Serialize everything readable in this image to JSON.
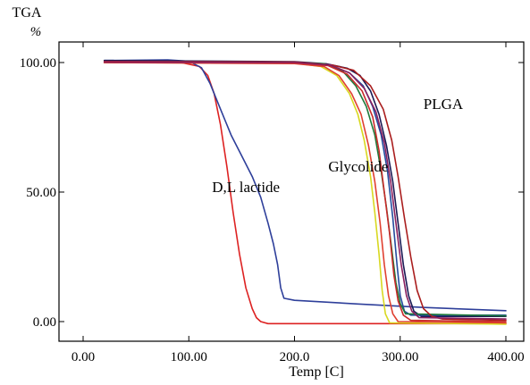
{
  "chart_data": {
    "type": "line",
    "y_unit_label": "TGA",
    "y_unit_symbol": "%",
    "xlabel": "Temp [C]",
    "xlim": [
      0,
      400
    ],
    "ylim": [
      -3,
      103
    ],
    "x_ticks": [
      {
        "value": 0,
        "label": "0.00"
      },
      {
        "value": 100,
        "label": "100.00"
      },
      {
        "value": 200,
        "label": "200.0"
      },
      {
        "value": 300,
        "label": "300.00"
      },
      {
        "value": 400,
        "label": "400.00"
      }
    ],
    "y_ticks": [
      {
        "value": 0,
        "label": "0.00"
      },
      {
        "value": 50,
        "label": "50.00"
      },
      {
        "value": 100,
        "label": "100.00"
      }
    ],
    "grid": false,
    "legend": "none",
    "annotations": [
      {
        "text": "PLGA",
        "x": 322,
        "y": 82
      },
      {
        "text": "Glycolide",
        "x": 232,
        "y": 58
      },
      {
        "text": "D,L lactide",
        "x": 122,
        "y": 50
      }
    ],
    "series": [
      {
        "color": "#dd2222",
        "points": [
          [
            20,
            100
          ],
          [
            90,
            100.2
          ],
          [
            110,
            98.5
          ],
          [
            118,
            95
          ],
          [
            124,
            88
          ],
          [
            130,
            76
          ],
          [
            136,
            60
          ],
          [
            142,
            42
          ],
          [
            148,
            26
          ],
          [
            154,
            13
          ],
          [
            160,
            5
          ],
          [
            164,
            1.5
          ],
          [
            168,
            0
          ],
          [
            175,
            -0.8
          ],
          [
            400,
            -0.8
          ]
        ]
      },
      {
        "color": "#2e3f9a",
        "points": [
          [
            20,
            100.8
          ],
          [
            80,
            101
          ],
          [
            100,
            100.5
          ],
          [
            112,
            98
          ],
          [
            120,
            92
          ],
          [
            130,
            82
          ],
          [
            140,
            72
          ],
          [
            150,
            64
          ],
          [
            160,
            56
          ],
          [
            168,
            48
          ],
          [
            175,
            38
          ],
          [
            180,
            30
          ],
          [
            184,
            22
          ],
          [
            187,
            13
          ],
          [
            190,
            9
          ],
          [
            200,
            8.2
          ],
          [
            260,
            6.8
          ],
          [
            320,
            5.5
          ],
          [
            400,
            4.2
          ]
        ]
      },
      {
        "color": "#1a1a55",
        "points": [
          [
            20,
            100.8
          ],
          [
            200,
            100.3
          ],
          [
            230,
            99.5
          ],
          [
            250,
            97.8
          ],
          [
            262,
            95
          ],
          [
            272,
            89
          ],
          [
            280,
            80
          ],
          [
            287,
            68
          ],
          [
            293,
            54
          ],
          [
            298,
            38
          ],
          [
            303,
            22
          ],
          [
            308,
            10
          ],
          [
            313,
            4
          ],
          [
            320,
            2
          ],
          [
            400,
            2
          ]
        ]
      },
      {
        "color": "#244c9e",
        "points": [
          [
            20,
            100.4
          ],
          [
            200,
            100.2
          ],
          [
            235,
            98.8
          ],
          [
            252,
            96
          ],
          [
            265,
            91
          ],
          [
            274,
            83
          ],
          [
            282,
            72
          ],
          [
            288,
            58
          ],
          [
            293,
            40
          ],
          [
            297,
            22
          ],
          [
            300,
            10
          ],
          [
            304,
            4
          ],
          [
            310,
            2.5
          ],
          [
            400,
            2.5
          ]
        ]
      },
      {
        "color": "#1f7a3a",
        "points": [
          [
            20,
            100.2
          ],
          [
            200,
            100
          ],
          [
            228,
            99.5
          ],
          [
            246,
            96.5
          ],
          [
            258,
            91
          ],
          [
            268,
            83
          ],
          [
            276,
            72
          ],
          [
            282,
            58
          ],
          [
            287,
            44
          ],
          [
            292,
            28
          ],
          [
            296,
            15
          ],
          [
            300,
            7
          ],
          [
            305,
            3
          ],
          [
            400,
            2.2
          ]
        ]
      },
      {
        "color": "#d8d820",
        "points": [
          [
            20,
            100
          ],
          [
            200,
            99.8
          ],
          [
            225,
            98.5
          ],
          [
            240,
            95
          ],
          [
            252,
            88
          ],
          [
            260,
            80
          ],
          [
            266,
            70
          ],
          [
            272,
            56
          ],
          [
            276,
            42
          ],
          [
            280,
            26
          ],
          [
            283,
            12
          ],
          [
            286,
            3
          ],
          [
            290,
            -0.5
          ],
          [
            400,
            -1
          ]
        ]
      },
      {
        "color": "#e04030",
        "points": [
          [
            20,
            100
          ],
          [
            200,
            99.6
          ],
          [
            228,
            98.5
          ],
          [
            242,
            95
          ],
          [
            254,
            88
          ],
          [
            263,
            80
          ],
          [
            270,
            68
          ],
          [
            276,
            54
          ],
          [
            281,
            38
          ],
          [
            285,
            22
          ],
          [
            289,
            10
          ],
          [
            293,
            3
          ],
          [
            298,
            0
          ],
          [
            400,
            -0.5
          ]
        ]
      },
      {
        "color": "#aa1e1e",
        "points": [
          [
            20,
            100.4
          ],
          [
            200,
            100.2
          ],
          [
            236,
            99
          ],
          [
            256,
            97
          ],
          [
            272,
            91
          ],
          [
            284,
            82
          ],
          [
            292,
            70
          ],
          [
            298,
            56
          ],
          [
            304,
            40
          ],
          [
            310,
            25
          ],
          [
            316,
            12
          ],
          [
            322,
            5
          ],
          [
            330,
            2
          ],
          [
            340,
            1
          ],
          [
            400,
            0.5
          ]
        ]
      },
      {
        "color": "#c82a2a",
        "points": [
          [
            20,
            100
          ],
          [
            200,
            99.9
          ],
          [
            232,
            98.8
          ],
          [
            250,
            95.5
          ],
          [
            264,
            89
          ],
          [
            274,
            79
          ],
          [
            280,
            66
          ],
          [
            285,
            50
          ],
          [
            290,
            34
          ],
          [
            294,
            18
          ],
          [
            298,
            8
          ],
          [
            303,
            2.5
          ],
          [
            310,
            0.5
          ],
          [
            400,
            0
          ]
        ]
      },
      {
        "color": "#8a2060",
        "points": [
          [
            20,
            100.2
          ],
          [
            200,
            100
          ],
          [
            234,
            99
          ],
          [
            252,
            96
          ],
          [
            266,
            90
          ],
          [
            277,
            81
          ],
          [
            285,
            69
          ],
          [
            291,
            54
          ],
          [
            296,
            38
          ],
          [
            301,
            22
          ],
          [
            306,
            10
          ],
          [
            311,
            4
          ],
          [
            318,
            1.5
          ],
          [
            400,
            1
          ]
        ]
      }
    ]
  }
}
